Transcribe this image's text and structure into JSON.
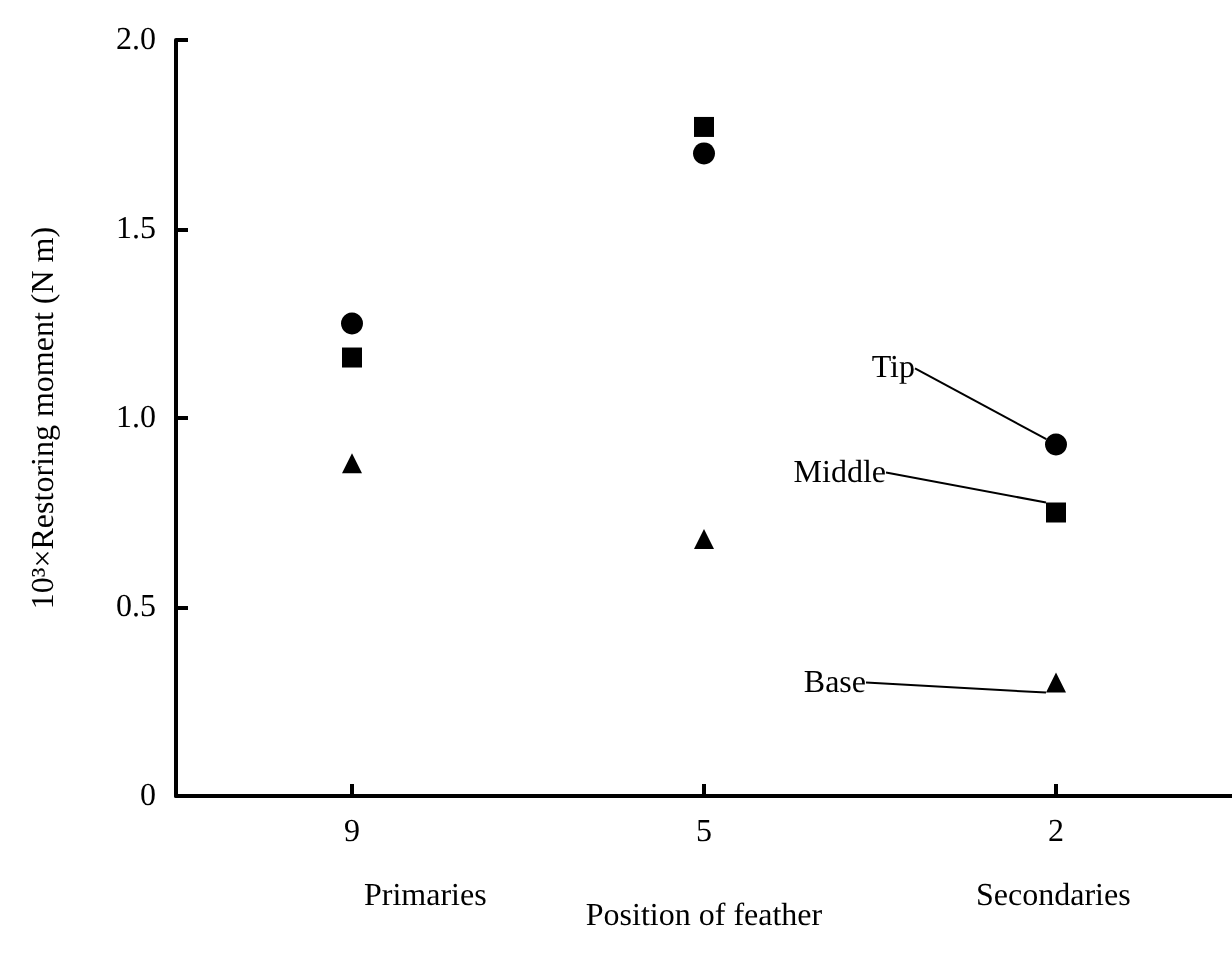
{
  "chart_data": {
    "type": "scatter",
    "xlabel": "Position of feather",
    "ylabel": "10³×Restoring moment (N m)",
    "categories": [
      "9",
      "5",
      "2"
    ],
    "series": [
      {
        "name": "Tip",
        "color": "#000000",
        "marker": "circle",
        "values": [
          1.25,
          1.7,
          0.93
        ]
      },
      {
        "name": "Middle",
        "color": "#000000",
        "marker": "square",
        "values": [
          1.16,
          1.77,
          0.75
        ]
      },
      {
        "name": "Base",
        "color": "#000000",
        "marker": "triangle",
        "values": [
          0.88,
          0.68,
          0.3
        ]
      }
    ],
    "ylim": [
      0,
      2
    ],
    "yticks": [
      "0",
      {
        "value": 0.5,
        "label": "0.5"
      },
      {
        "value": 1,
        "label": "1.0"
      },
      {
        "value": 1.5,
        "label": "1.5"
      },
      {
        "value": 2,
        "label": "2.0"
      }
    ],
    "annotations": [
      "Primaries",
      "Secondaries"
    ],
    "grid": false
  }
}
